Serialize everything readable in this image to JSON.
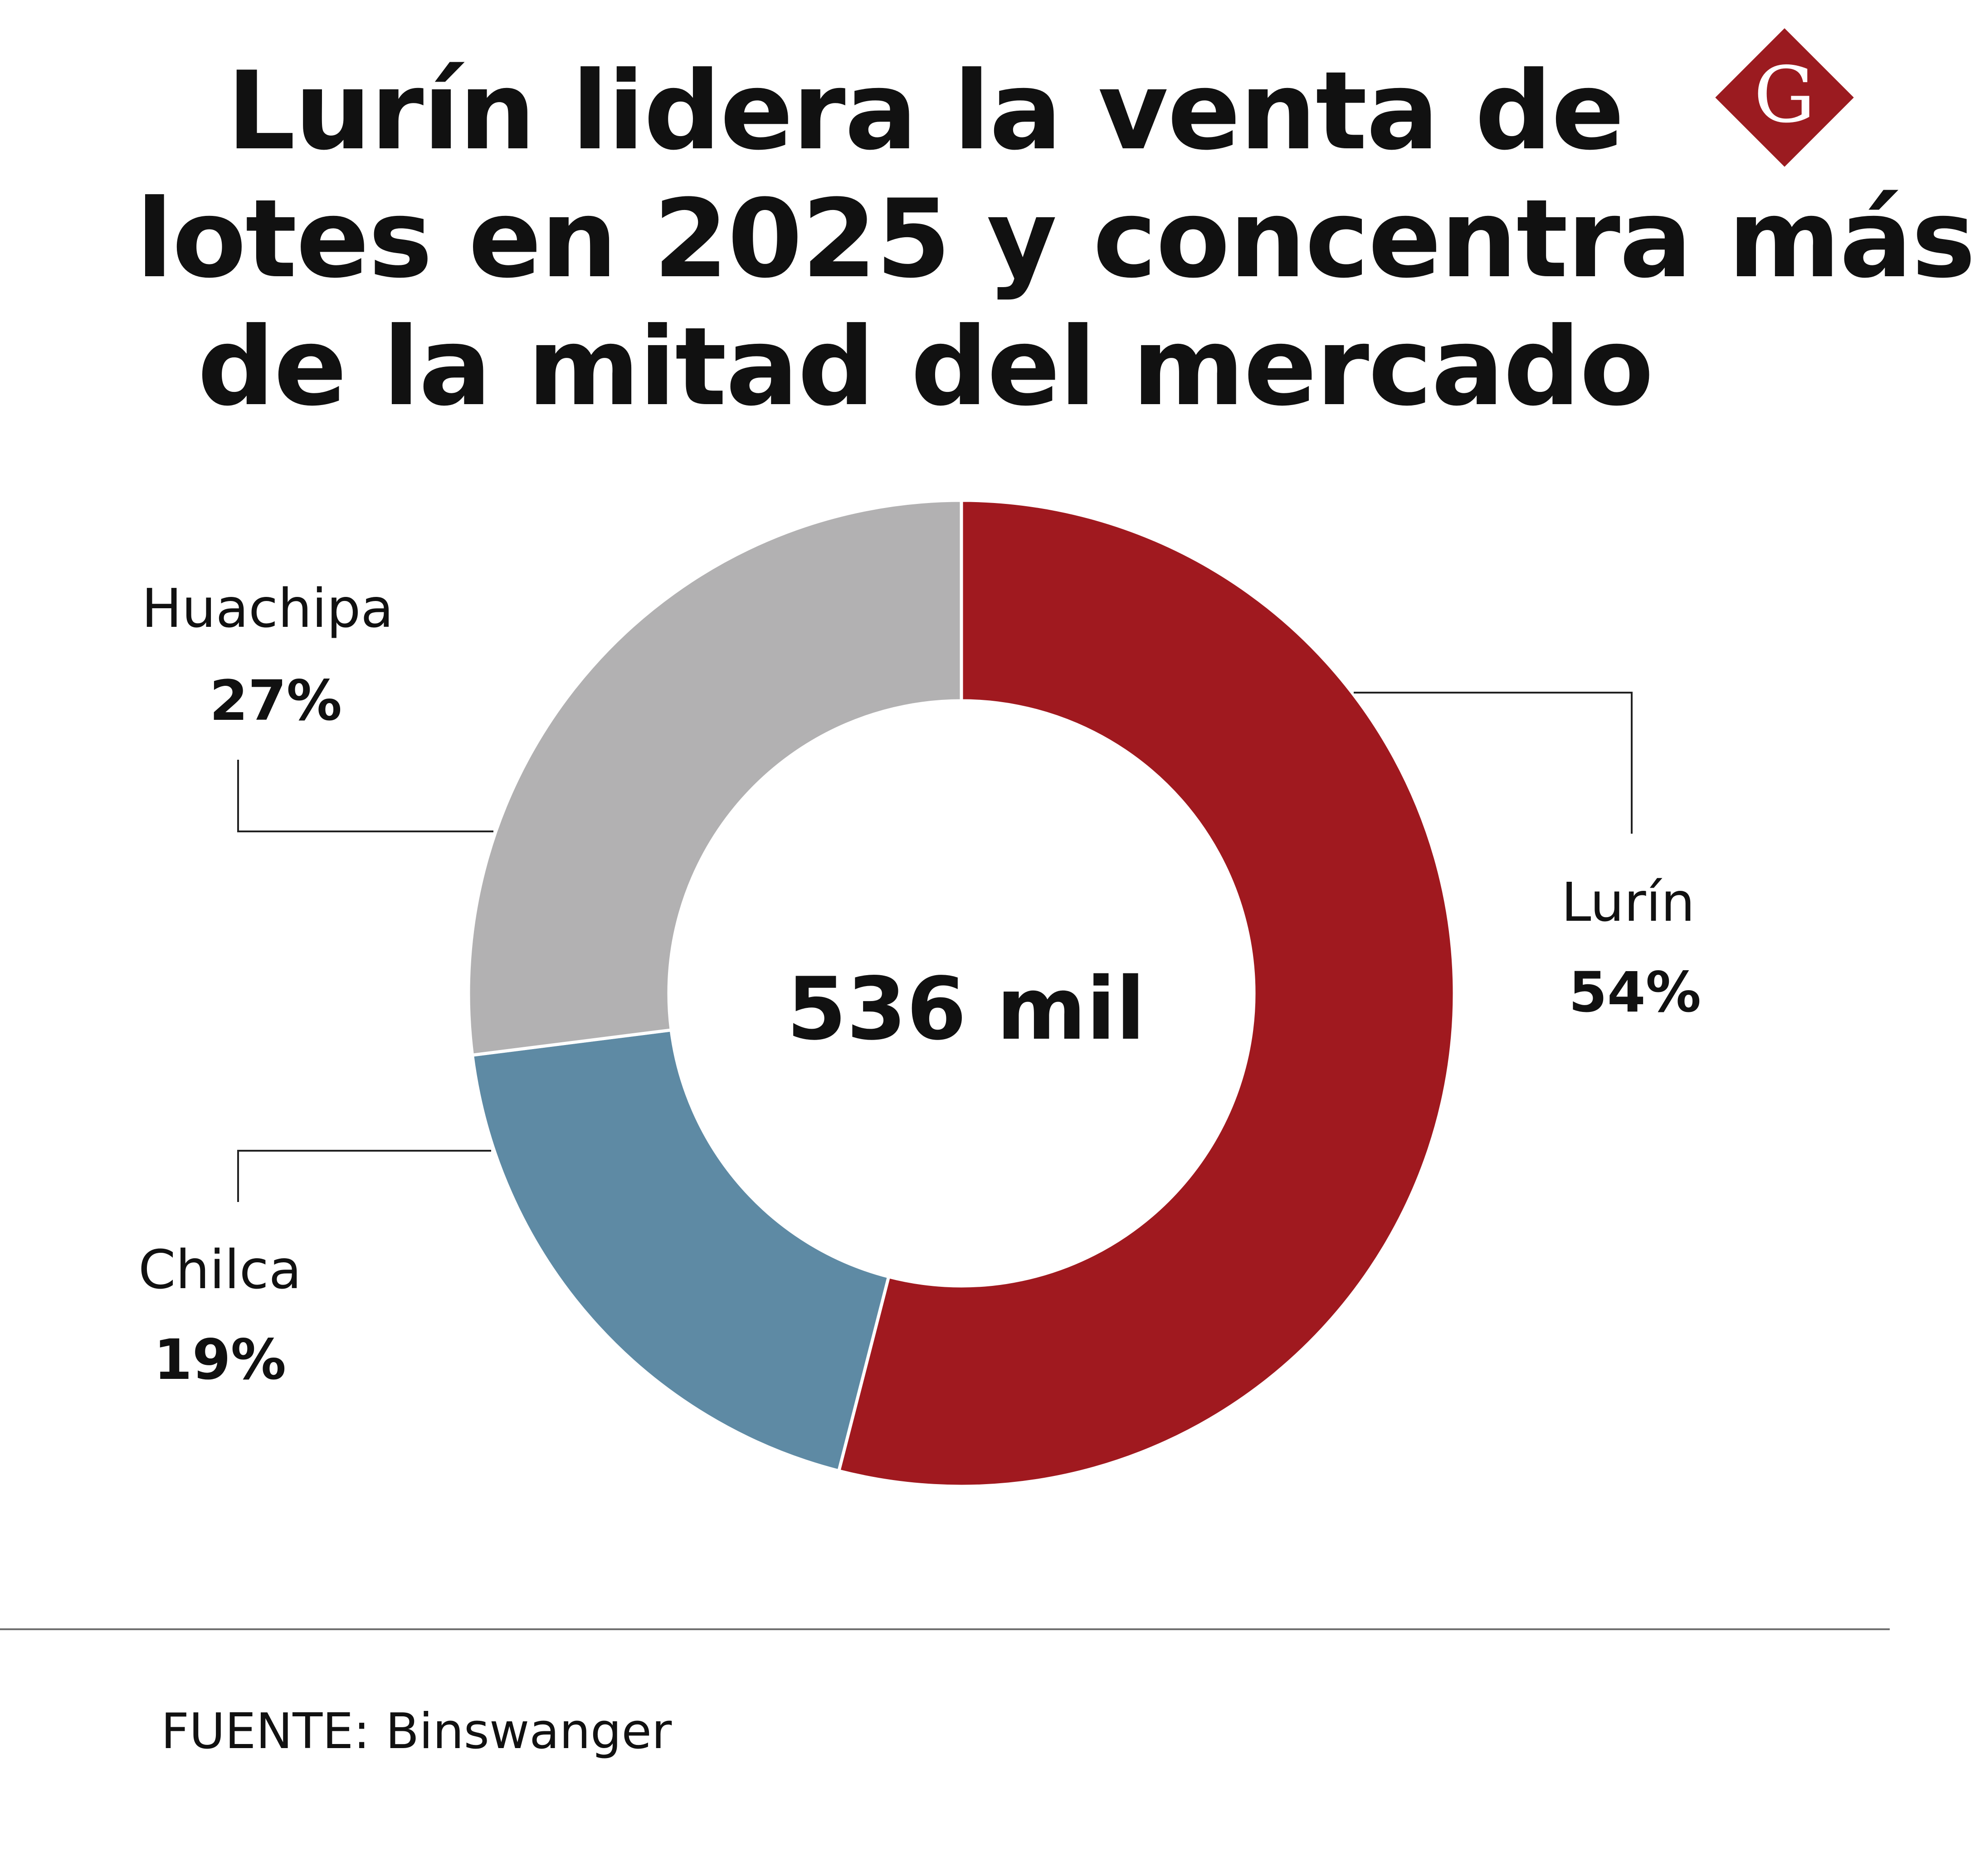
{
  "title_lines": [
    "Lurín lidera la venta de",
    "lotes en 2025 y concentra más",
    "de la mitad del mercado"
  ],
  "logo": {
    "letter": "G",
    "color": "#9b1b20"
  },
  "chart_data": {
    "type": "pie",
    "variant": "donut",
    "center_label": "536 mil",
    "categories": [
      "Lurín",
      "Chilca",
      "Huachipa"
    ],
    "values": [
      54,
      19,
      27
    ],
    "labels": [
      "54%",
      "19%",
      "27%"
    ],
    "colors": [
      "#a0191f",
      "#5e8aa4",
      "#b2b1b2"
    ],
    "start": "top, clockwise"
  },
  "source": "FUENTE: Binswanger"
}
